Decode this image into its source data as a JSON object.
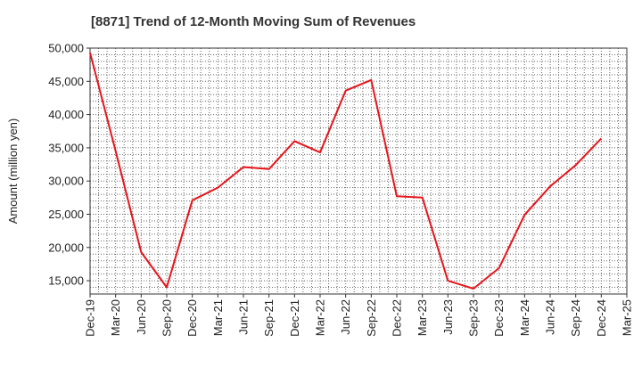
{
  "chart_data": {
    "type": "line",
    "title": "[8871]  Trend of 12-Month Moving Sum of Revenues",
    "ylabel": "Amount (million yen)",
    "xlabel": "",
    "ylim": [
      13000,
      50000
    ],
    "yticks": [
      15000,
      20000,
      25000,
      30000,
      35000,
      40000,
      45000,
      50000
    ],
    "ytick_labels": [
      "15,000",
      "20,000",
      "25,000",
      "30,000",
      "35,000",
      "40,000",
      "45,000",
      "50,000"
    ],
    "categories": [
      "Dec-19",
      "Mar-20",
      "Jun-20",
      "Sep-20",
      "Dec-20",
      "Mar-21",
      "Jun-21",
      "Sep-21",
      "Dec-21",
      "Mar-22",
      "Jun-22",
      "Sep-22",
      "Dec-22",
      "Mar-23",
      "Jun-23",
      "Sep-23",
      "Dec-23",
      "Mar-24",
      "Jun-24",
      "Sep-24",
      "Dec-24",
      "Mar-25"
    ],
    "grid": true,
    "series": [
      {
        "color": "#e8141b",
        "values": [
          49300,
          34500,
          19300,
          14000,
          27100,
          29000,
          32100,
          31800,
          36000,
          34300,
          43600,
          45200,
          27700,
          27500,
          15000,
          13800,
          16900,
          24900,
          29200,
          32400,
          36400,
          null
        ]
      }
    ]
  }
}
